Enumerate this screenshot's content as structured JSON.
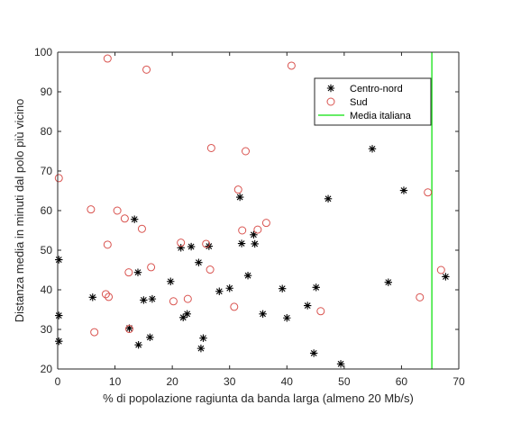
{
  "chart_data": {
    "type": "scatter",
    "xlabel": "% di popolazione ragiunta da banda larga (almeno 20 Mb/s)",
    "ylabel": "Distanza media in minuti dal polo più vicino",
    "xlim": [
      0,
      70
    ],
    "ylim": [
      20,
      100
    ],
    "x_ticks": [
      "0",
      "10",
      "20",
      "30",
      "40",
      "50",
      "60",
      "70"
    ],
    "y_ticks": [
      "20",
      "30",
      "40",
      "50",
      "60",
      "70",
      "80",
      "90",
      "100"
    ],
    "grid": false,
    "legend_position": "top-right",
    "series": [
      {
        "name": "Centro-nord",
        "marker": "asterisk",
        "color": "#000000",
        "points": [
          [
            0.2,
            47.6
          ],
          [
            0.2,
            33.5
          ],
          [
            0.2,
            27.0
          ],
          [
            6.1,
            38.1
          ],
          [
            12.5,
            30.3
          ],
          [
            13.4,
            57.8
          ],
          [
            14.0,
            44.4
          ],
          [
            14.1,
            26.1
          ],
          [
            15.0,
            37.4
          ],
          [
            16.1,
            28.0
          ],
          [
            16.5,
            37.7
          ],
          [
            19.7,
            42.1
          ],
          [
            21.5,
            50.6
          ],
          [
            21.9,
            33.0
          ],
          [
            22.6,
            33.9
          ],
          [
            23.3,
            50.9
          ],
          [
            24.6,
            46.9
          ],
          [
            25.0,
            25.2
          ],
          [
            25.4,
            27.8
          ],
          [
            26.4,
            51.0
          ],
          [
            28.2,
            39.6
          ],
          [
            30.0,
            40.4
          ],
          [
            31.8,
            63.4
          ],
          [
            32.1,
            51.7
          ],
          [
            33.2,
            43.6
          ],
          [
            34.2,
            53.9
          ],
          [
            34.4,
            51.6
          ],
          [
            35.8,
            33.9
          ],
          [
            39.2,
            40.3
          ],
          [
            40.0,
            32.9
          ],
          [
            43.6,
            36.0
          ],
          [
            44.7,
            24.0
          ],
          [
            45.1,
            40.6
          ],
          [
            47.2,
            63.0
          ],
          [
            49.4,
            21.3
          ],
          [
            54.9,
            75.6
          ],
          [
            57.7,
            41.9
          ],
          [
            60.4,
            65.1
          ],
          [
            67.7,
            43.3
          ]
        ]
      },
      {
        "name": "Sud",
        "marker": "circle",
        "color": "#d9534f",
        "points": [
          [
            0.2,
            68.2
          ],
          [
            5.8,
            60.3
          ],
          [
            6.4,
            29.3
          ],
          [
            8.4,
            38.9
          ],
          [
            8.7,
            98.4
          ],
          [
            8.7,
            51.4
          ],
          [
            8.9,
            38.2
          ],
          [
            10.4,
            60.0
          ],
          [
            11.7,
            58.0
          ],
          [
            12.4,
            44.4
          ],
          [
            12.5,
            30.1
          ],
          [
            14.7,
            55.4
          ],
          [
            15.5,
            95.6
          ],
          [
            16.3,
            45.7
          ],
          [
            20.2,
            37.1
          ],
          [
            21.5,
            51.9
          ],
          [
            22.7,
            37.7
          ],
          [
            25.9,
            51.6
          ],
          [
            26.6,
            45.1
          ],
          [
            26.8,
            75.8
          ],
          [
            30.8,
            35.7
          ],
          [
            31.5,
            65.3
          ],
          [
            32.2,
            55.0
          ],
          [
            32.8,
            75.0
          ],
          [
            34.9,
            55.2
          ],
          [
            36.4,
            56.9
          ],
          [
            40.8,
            96.6
          ],
          [
            45.9,
            34.6
          ],
          [
            63.2,
            38.1
          ],
          [
            64.6,
            64.6
          ],
          [
            66.9,
            45.0
          ]
        ]
      },
      {
        "name": "Media italiana",
        "marker": "line",
        "color": "#33e633",
        "x_value": 65.3
      }
    ]
  }
}
